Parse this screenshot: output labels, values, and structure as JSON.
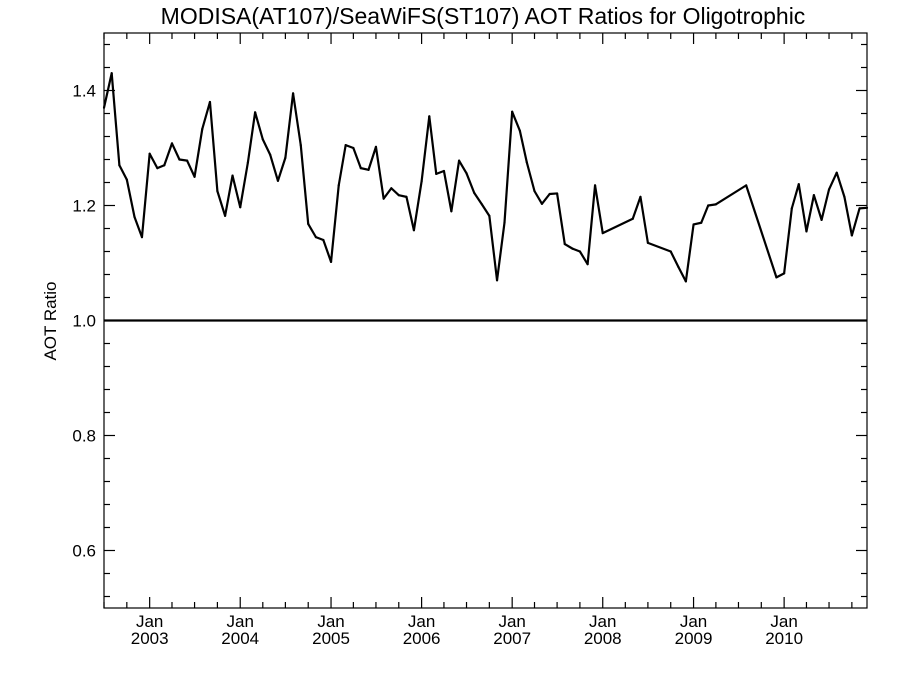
{
  "chart_data": {
    "type": "line",
    "title": "MODISA(AT107)/SeaWiFS(ST107)  AOT Ratios for Oligotrophic",
    "xlabel": "",
    "ylabel": "AOT Ratio",
    "xlim": [
      "2002-07-01",
      "2010-12-01"
    ],
    "ylim": [
      0.5,
      1.5
    ],
    "yticks": [
      {
        "value": 0.6,
        "label": "0.6"
      },
      {
        "value": 0.8,
        "label": "0.8"
      },
      {
        "value": 1.0,
        "label": "1.0"
      },
      {
        "value": 1.2,
        "label": "1.2"
      },
      {
        "value": 1.4,
        "label": "1.4"
      }
    ],
    "xticks": [
      {
        "value": "2003-01-01",
        "month": "Jan",
        "year": "2003"
      },
      {
        "value": "2004-01-01",
        "month": "Jan",
        "year": "2004"
      },
      {
        "value": "2005-01-01",
        "month": "Jan",
        "year": "2005"
      },
      {
        "value": "2006-01-01",
        "month": "Jan",
        "year": "2006"
      },
      {
        "value": "2007-01-01",
        "month": "Jan",
        "year": "2007"
      },
      {
        "value": "2008-01-01",
        "month": "Jan",
        "year": "2008"
      },
      {
        "value": "2009-01-01",
        "month": "Jan",
        "year": "2009"
      },
      {
        "value": "2010-01-01",
        "month": "Jan",
        "year": "2010"
      }
    ],
    "reference_line": {
      "y": 1.0
    },
    "grid": false,
    "series": [
      {
        "x": [
          "2002-07-01",
          "2002-08-01",
          "2002-09-01",
          "2002-10-01",
          "2002-11-01",
          "2002-12-01",
          "2003-01-01",
          "2003-02-01",
          "2003-03-01",
          "2003-04-01",
          "2003-05-01",
          "2003-06-01",
          "2003-07-01",
          "2003-08-01",
          "2003-09-01",
          "2003-10-01",
          "2003-11-01",
          "2003-12-01",
          "2004-01-01",
          "2004-02-01",
          "2004-03-01",
          "2004-04-01",
          "2004-05-01",
          "2004-06-01",
          "2004-07-01",
          "2004-08-01",
          "2004-09-01",
          "2004-10-01",
          "2004-11-01",
          "2004-12-01",
          "2005-01-01",
          "2005-02-01",
          "2005-03-01",
          "2005-04-01",
          "2005-05-01",
          "2005-06-01",
          "2005-07-01",
          "2005-08-01",
          "2005-09-01",
          "2005-10-01",
          "2005-11-01",
          "2005-12-01",
          "2006-01-01",
          "2006-02-01",
          "2006-03-01",
          "2006-04-01",
          "2006-05-01",
          "2006-06-01",
          "2006-07-01",
          "2006-08-01",
          "2006-09-01",
          "2006-10-01",
          "2006-11-01",
          "2006-12-01",
          "2007-01-01",
          "2007-02-01",
          "2007-03-01",
          "2007-04-01",
          "2007-05-01",
          "2007-06-01",
          "2007-07-01",
          "2007-08-01",
          "2007-09-01",
          "2007-10-01",
          "2007-11-01",
          "2007-12-01",
          "2008-01-01",
          "2008-05-01",
          "2008-06-01",
          "2008-07-01",
          "2008-10-01",
          "2008-11-01",
          "2008-12-01",
          "2009-01-01",
          "2009-02-01",
          "2009-03-01",
          "2009-04-01",
          "2009-08-01",
          "2009-12-01",
          "2010-01-01",
          "2010-02-01",
          "2010-03-01",
          "2010-04-01",
          "2010-05-01",
          "2010-06-01",
          "2010-07-01",
          "2010-08-01",
          "2010-09-01",
          "2010-10-01",
          "2010-11-01",
          "2010-12-01"
        ],
        "values": [
          1.37,
          1.43,
          1.27,
          1.245,
          1.18,
          1.145,
          1.29,
          1.265,
          1.27,
          1.308,
          1.28,
          1.278,
          1.25,
          1.333,
          1.38,
          1.225,
          1.182,
          1.252,
          1.197,
          1.275,
          1.362,
          1.315,
          1.288,
          1.243,
          1.283,
          1.395,
          1.305,
          1.168,
          1.145,
          1.14,
          1.102,
          1.235,
          1.305,
          1.3,
          1.265,
          1.262,
          1.302,
          1.212,
          1.23,
          1.218,
          1.215,
          1.157,
          1.242,
          1.355,
          1.255,
          1.26,
          1.19,
          1.278,
          1.256,
          1.222,
          1.202,
          1.182,
          1.07,
          1.17,
          1.363,
          1.33,
          1.275,
          1.225,
          1.203,
          1.22,
          1.221,
          1.133,
          1.125,
          1.12,
          1.098,
          1.235,
          1.152,
          1.177,
          1.215,
          1.135,
          1.12,
          1.093,
          1.068,
          1.167,
          1.17,
          1.2,
          1.202,
          1.235,
          1.075,
          1.082,
          1.195,
          1.237,
          1.155,
          1.218,
          1.175,
          1.228,
          1.257,
          1.215,
          1.148,
          1.195,
          1.196
        ]
      }
    ]
  }
}
